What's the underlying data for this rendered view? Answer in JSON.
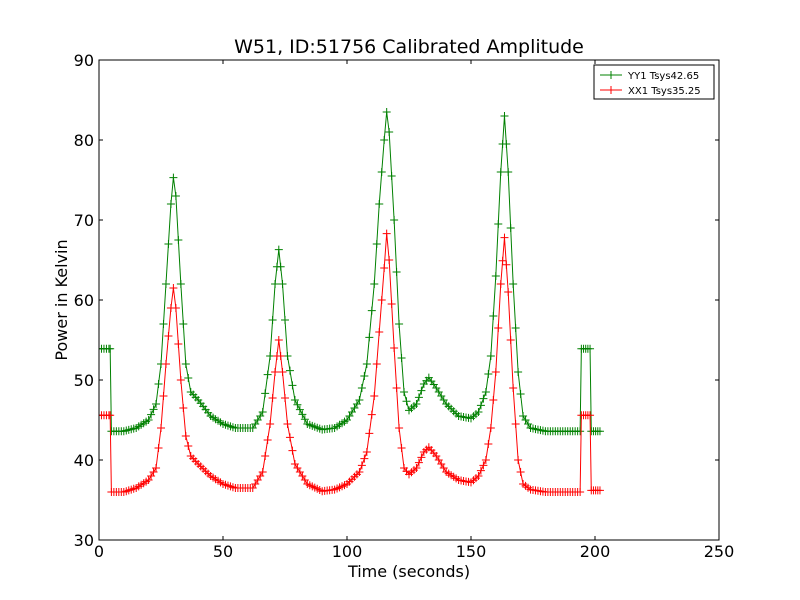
{
  "chart_data": {
    "type": "line",
    "title": "W51, ID:51756 Calibrated Amplitude",
    "xlabel": "Time (seconds)",
    "ylabel": "Power in Kelvin",
    "xlim": [
      0,
      250
    ],
    "ylim": [
      30,
      90
    ],
    "xticks": [
      0,
      50,
      100,
      150,
      200,
      250
    ],
    "yticks": [
      30,
      40,
      50,
      60,
      70,
      80,
      90
    ],
    "grid": false,
    "legend_position": "top-right",
    "marker": "+",
    "series": [
      {
        "name": "YY1 Tsys42.65",
        "color": "#008000",
        "anchors": [
          [
            0,
            53.9
          ],
          [
            4,
            53.9
          ],
          [
            4.5,
            53.9
          ],
          [
            5,
            43.6
          ],
          [
            10,
            43.6
          ],
          [
            15,
            44.0
          ],
          [
            20,
            45.0
          ],
          [
            23,
            47.0
          ],
          [
            25,
            52.0
          ],
          [
            27,
            62.0
          ],
          [
            29,
            72.0
          ],
          [
            30,
            75.3
          ],
          [
            31,
            73.0
          ],
          [
            33,
            62.0
          ],
          [
            35,
            52.0
          ],
          [
            37,
            48.5
          ],
          [
            40,
            47.5
          ],
          [
            45,
            45.5
          ],
          [
            50,
            44.5
          ],
          [
            55,
            44.0
          ],
          [
            62,
            44.0
          ],
          [
            66,
            46.0
          ],
          [
            69,
            53.0
          ],
          [
            71,
            62.0
          ],
          [
            72.5,
            66.3
          ],
          [
            74,
            62.0
          ],
          [
            76,
            53.0
          ],
          [
            79,
            47.5
          ],
          [
            84,
            44.5
          ],
          [
            90,
            43.8
          ],
          [
            95,
            44.0
          ],
          [
            100,
            45.0
          ],
          [
            105,
            47.5
          ],
          [
            108,
            52.0
          ],
          [
            111,
            62.0
          ],
          [
            113,
            72.0
          ],
          [
            115,
            80.0
          ],
          [
            116,
            83.5
          ],
          [
            117,
            81.0
          ],
          [
            119,
            70.0
          ],
          [
            121,
            57.0
          ],
          [
            123,
            48.5
          ],
          [
            125,
            46.2
          ],
          [
            128,
            47.0
          ],
          [
            131,
            49.5
          ],
          [
            133,
            50.3
          ],
          [
            136,
            49.0
          ],
          [
            140,
            47.0
          ],
          [
            145,
            45.5
          ],
          [
            150,
            45.2
          ],
          [
            153,
            46.0
          ],
          [
            156,
            48.5
          ],
          [
            158,
            53.0
          ],
          [
            160,
            63.0
          ],
          [
            162,
            76.0
          ],
          [
            163.5,
            83.0
          ],
          [
            165,
            76.0
          ],
          [
            167,
            62.0
          ],
          [
            169,
            51.0
          ],
          [
            171,
            45.5
          ],
          [
            174,
            44.0
          ],
          [
            180,
            43.6
          ],
          [
            194,
            43.6
          ],
          [
            194.5,
            53.9
          ],
          [
            198,
            53.9
          ],
          [
            198.5,
            43.6
          ],
          [
            202,
            43.6
          ]
        ]
      },
      {
        "name": "XX1 Tsys35.25",
        "color": "#ff0000",
        "anchors": [
          [
            0,
            45.6
          ],
          [
            4,
            45.6
          ],
          [
            4.5,
            45.6
          ],
          [
            5,
            36.0
          ],
          [
            10,
            36.0
          ],
          [
            15,
            36.5
          ],
          [
            20,
            37.5
          ],
          [
            23,
            39.0
          ],
          [
            25,
            44.0
          ],
          [
            27,
            52.0
          ],
          [
            29,
            59.0
          ],
          [
            30,
            61.5
          ],
          [
            31,
            59.0
          ],
          [
            33,
            50.0
          ],
          [
            35,
            43.0
          ],
          [
            37,
            40.5
          ],
          [
            40,
            39.5
          ],
          [
            45,
            38.0
          ],
          [
            50,
            37.0
          ],
          [
            55,
            36.5
          ],
          [
            62,
            36.5
          ],
          [
            66,
            38.5
          ],
          [
            69,
            44.5
          ],
          [
            71,
            51.0
          ],
          [
            72.5,
            55.0
          ],
          [
            74,
            51.0
          ],
          [
            76,
            44.5
          ],
          [
            79,
            39.5
          ],
          [
            84,
            37.0
          ],
          [
            90,
            36.1
          ],
          [
            95,
            36.3
          ],
          [
            100,
            37.0
          ],
          [
            105,
            38.5
          ],
          [
            108,
            41.0
          ],
          [
            111,
            48.0
          ],
          [
            113,
            56.0
          ],
          [
            115,
            64.0
          ],
          [
            116,
            68.3
          ],
          [
            117,
            65.0
          ],
          [
            119,
            54.0
          ],
          [
            121,
            44.0
          ],
          [
            123,
            39.0
          ],
          [
            125,
            38.2
          ],
          [
            128,
            39.0
          ],
          [
            131,
            41.0
          ],
          [
            133,
            41.6
          ],
          [
            136,
            40.5
          ],
          [
            140,
            38.5
          ],
          [
            145,
            37.5
          ],
          [
            150,
            37.2
          ],
          [
            153,
            38.0
          ],
          [
            156,
            40.0
          ],
          [
            158,
            44.0
          ],
          [
            160,
            51.0
          ],
          [
            162,
            62.0
          ],
          [
            163.5,
            67.8
          ],
          [
            165,
            61.0
          ],
          [
            167,
            49.0
          ],
          [
            169,
            40.0
          ],
          [
            171,
            37.0
          ],
          [
            174,
            36.3
          ],
          [
            180,
            36.0
          ],
          [
            194,
            36.0
          ],
          [
            194.5,
            45.6
          ],
          [
            198,
            45.6
          ],
          [
            198.5,
            36.2
          ],
          [
            202,
            36.2
          ]
        ]
      }
    ]
  }
}
